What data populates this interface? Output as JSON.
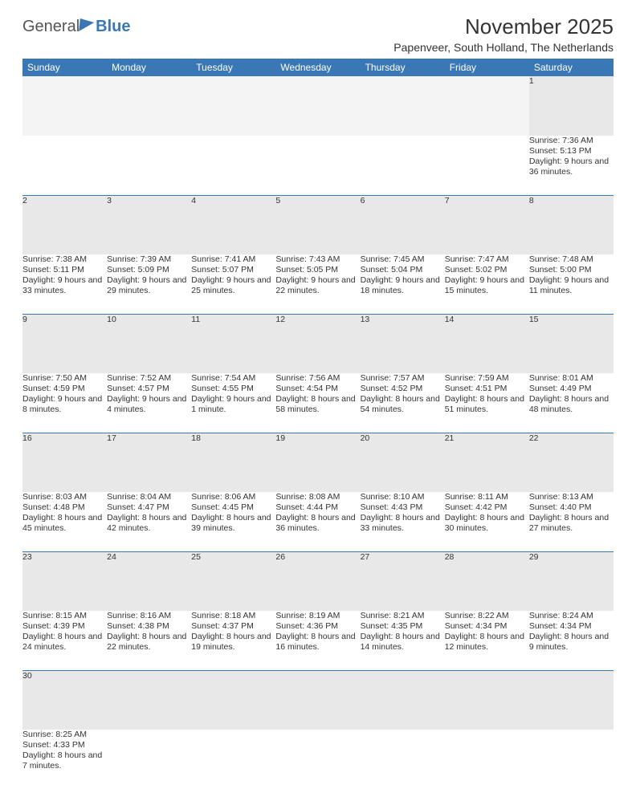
{
  "brand": {
    "part1": "General",
    "part2": "Blue"
  },
  "title": "November 2025",
  "subtitle": "Papenveer, South Holland, The Netherlands",
  "colors": {
    "accent": "#3a78b5",
    "header_bg": "#3a78b5",
    "daynum_bg": "#e8e8e8"
  },
  "weekdays": [
    "Sunday",
    "Monday",
    "Tuesday",
    "Wednesday",
    "Thursday",
    "Friday",
    "Saturday"
  ],
  "weeks": [
    [
      null,
      null,
      null,
      null,
      null,
      null,
      {
        "n": "1",
        "sr": "7:36 AM",
        "ss": "5:13 PM",
        "dl": "9 hours and 36 minutes."
      }
    ],
    [
      {
        "n": "2",
        "sr": "7:38 AM",
        "ss": "5:11 PM",
        "dl": "9 hours and 33 minutes."
      },
      {
        "n": "3",
        "sr": "7:39 AM",
        "ss": "5:09 PM",
        "dl": "9 hours and 29 minutes."
      },
      {
        "n": "4",
        "sr": "7:41 AM",
        "ss": "5:07 PM",
        "dl": "9 hours and 25 minutes."
      },
      {
        "n": "5",
        "sr": "7:43 AM",
        "ss": "5:05 PM",
        "dl": "9 hours and 22 minutes."
      },
      {
        "n": "6",
        "sr": "7:45 AM",
        "ss": "5:04 PM",
        "dl": "9 hours and 18 minutes."
      },
      {
        "n": "7",
        "sr": "7:47 AM",
        "ss": "5:02 PM",
        "dl": "9 hours and 15 minutes."
      },
      {
        "n": "8",
        "sr": "7:48 AM",
        "ss": "5:00 PM",
        "dl": "9 hours and 11 minutes."
      }
    ],
    [
      {
        "n": "9",
        "sr": "7:50 AM",
        "ss": "4:59 PM",
        "dl": "9 hours and 8 minutes."
      },
      {
        "n": "10",
        "sr": "7:52 AM",
        "ss": "4:57 PM",
        "dl": "9 hours and 4 minutes."
      },
      {
        "n": "11",
        "sr": "7:54 AM",
        "ss": "4:55 PM",
        "dl": "9 hours and 1 minute."
      },
      {
        "n": "12",
        "sr": "7:56 AM",
        "ss": "4:54 PM",
        "dl": "8 hours and 58 minutes."
      },
      {
        "n": "13",
        "sr": "7:57 AM",
        "ss": "4:52 PM",
        "dl": "8 hours and 54 minutes."
      },
      {
        "n": "14",
        "sr": "7:59 AM",
        "ss": "4:51 PM",
        "dl": "8 hours and 51 minutes."
      },
      {
        "n": "15",
        "sr": "8:01 AM",
        "ss": "4:49 PM",
        "dl": "8 hours and 48 minutes."
      }
    ],
    [
      {
        "n": "16",
        "sr": "8:03 AM",
        "ss": "4:48 PM",
        "dl": "8 hours and 45 minutes."
      },
      {
        "n": "17",
        "sr": "8:04 AM",
        "ss": "4:47 PM",
        "dl": "8 hours and 42 minutes."
      },
      {
        "n": "18",
        "sr": "8:06 AM",
        "ss": "4:45 PM",
        "dl": "8 hours and 39 minutes."
      },
      {
        "n": "19",
        "sr": "8:08 AM",
        "ss": "4:44 PM",
        "dl": "8 hours and 36 minutes."
      },
      {
        "n": "20",
        "sr": "8:10 AM",
        "ss": "4:43 PM",
        "dl": "8 hours and 33 minutes."
      },
      {
        "n": "21",
        "sr": "8:11 AM",
        "ss": "4:42 PM",
        "dl": "8 hours and 30 minutes."
      },
      {
        "n": "22",
        "sr": "8:13 AM",
        "ss": "4:40 PM",
        "dl": "8 hours and 27 minutes."
      }
    ],
    [
      {
        "n": "23",
        "sr": "8:15 AM",
        "ss": "4:39 PM",
        "dl": "8 hours and 24 minutes."
      },
      {
        "n": "24",
        "sr": "8:16 AM",
        "ss": "4:38 PM",
        "dl": "8 hours and 22 minutes."
      },
      {
        "n": "25",
        "sr": "8:18 AM",
        "ss": "4:37 PM",
        "dl": "8 hours and 19 minutes."
      },
      {
        "n": "26",
        "sr": "8:19 AM",
        "ss": "4:36 PM",
        "dl": "8 hours and 16 minutes."
      },
      {
        "n": "27",
        "sr": "8:21 AM",
        "ss": "4:35 PM",
        "dl": "8 hours and 14 minutes."
      },
      {
        "n": "28",
        "sr": "8:22 AM",
        "ss": "4:34 PM",
        "dl": "8 hours and 12 minutes."
      },
      {
        "n": "29",
        "sr": "8:24 AM",
        "ss": "4:34 PM",
        "dl": "8 hours and 9 minutes."
      }
    ],
    [
      {
        "n": "30",
        "sr": "8:25 AM",
        "ss": "4:33 PM",
        "dl": "8 hours and 7 minutes."
      },
      null,
      null,
      null,
      null,
      null,
      null
    ]
  ],
  "labels": {
    "sunrise": "Sunrise:",
    "sunset": "Sunset:",
    "daylight": "Daylight:"
  }
}
